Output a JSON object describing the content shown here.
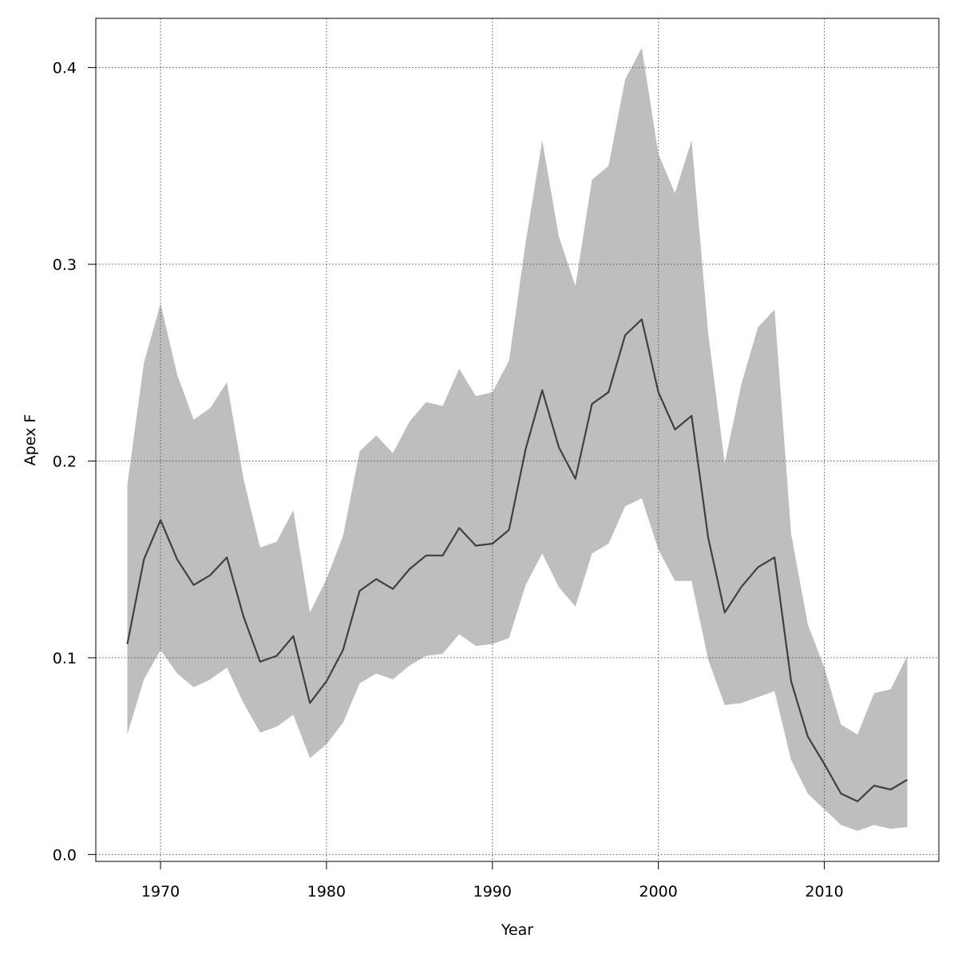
{
  "chart_data": {
    "type": "area",
    "title": "",
    "xlabel": "Year",
    "ylabel": "Apex F",
    "xlim": [
      1966.1,
      2016.9
    ],
    "ylim": [
      -0.0035,
      0.425
    ],
    "x_ticks": [
      1970,
      1980,
      1990,
      2000,
      2010
    ],
    "y_ticks": [
      0.0,
      0.1,
      0.2,
      0.3,
      0.4
    ],
    "y_tick_labels": [
      "0.0",
      "0.1",
      "0.2",
      "0.3",
      "0.4"
    ],
    "grid": true,
    "colors": {
      "band": "#bebebe",
      "line": "#404040"
    },
    "x": [
      1968,
      1969,
      1970,
      1971,
      1972,
      1973,
      1974,
      1975,
      1976,
      1977,
      1978,
      1979,
      1980,
      1981,
      1982,
      1983,
      1984,
      1985,
      1986,
      1987,
      1988,
      1989,
      1990,
      1991,
      1992,
      1993,
      1994,
      1995,
      1996,
      1997,
      1998,
      1999,
      2000,
      2001,
      2002,
      2003,
      2004,
      2005,
      2006,
      2007,
      2008,
      2009,
      2010,
      2011,
      2012,
      2013,
      2014,
      2015
    ],
    "series": [
      {
        "values": [
          0.107,
          0.15,
          0.17,
          0.15,
          0.137,
          0.142,
          0.151,
          0.121,
          0.098,
          0.101,
          0.111,
          0.077,
          0.088,
          0.104,
          0.134,
          0.14,
          0.135,
          0.145,
          0.152,
          0.152,
          0.166,
          0.157,
          0.158,
          0.165,
          0.206,
          0.236,
          0.207,
          0.191,
          0.229,
          0.235,
          0.264,
          0.272,
          0.235,
          0.216,
          0.223,
          0.161,
          0.123,
          0.136,
          0.146,
          0.151,
          0.088,
          0.06,
          0.046,
          0.031,
          0.027,
          0.035,
          0.033,
          0.038
        ],
        "lower": [
          0.061,
          0.089,
          0.104,
          0.092,
          0.085,
          0.089,
          0.095,
          0.077,
          0.062,
          0.065,
          0.071,
          0.049,
          0.056,
          0.067,
          0.087,
          0.092,
          0.089,
          0.096,
          0.101,
          0.102,
          0.112,
          0.106,
          0.107,
          0.11,
          0.137,
          0.153,
          0.136,
          0.126,
          0.153,
          0.158,
          0.177,
          0.181,
          0.155,
          0.139,
          0.139,
          0.099,
          0.076,
          0.077,
          0.08,
          0.083,
          0.048,
          0.031,
          0.023,
          0.015,
          0.012,
          0.015,
          0.013,
          0.014
        ],
        "upper": [
          0.188,
          0.25,
          0.28,
          0.244,
          0.221,
          0.227,
          0.24,
          0.191,
          0.156,
          0.159,
          0.175,
          0.123,
          0.14,
          0.162,
          0.205,
          0.213,
          0.204,
          0.22,
          0.23,
          0.228,
          0.247,
          0.233,
          0.235,
          0.251,
          0.311,
          0.363,
          0.314,
          0.289,
          0.343,
          0.35,
          0.394,
          0.41,
          0.356,
          0.336,
          0.363,
          0.265,
          0.199,
          0.239,
          0.268,
          0.277,
          0.163,
          0.117,
          0.095,
          0.066,
          0.061,
          0.082,
          0.084,
          0.101
        ]
      }
    ]
  }
}
